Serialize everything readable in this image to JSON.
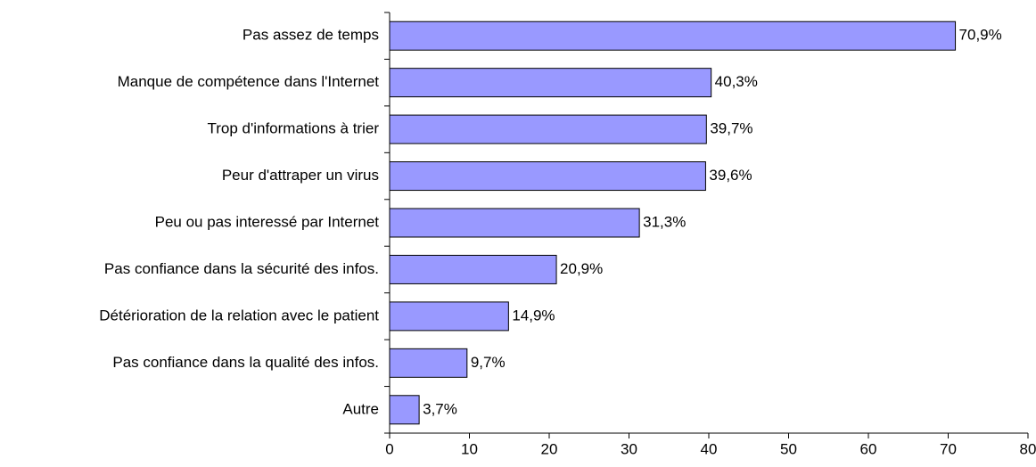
{
  "chart_data": {
    "type": "bar",
    "orientation": "horizontal",
    "categories": [
      "Pas assez de temps",
      "Manque de compétence dans l'Internet",
      "Trop d'informations à trier",
      "Peur d'attraper un virus",
      "Peu ou pas interessé par Internet",
      "Pas confiance dans la sécurité des infos.",
      "Détérioration de la relation avec le patient",
      "Pas confiance dans la qualité des infos.",
      "Autre"
    ],
    "values": [
      70.9,
      40.3,
      39.7,
      39.6,
      31.3,
      20.9,
      14.9,
      9.7,
      3.7
    ],
    "value_labels": [
      "70,9%",
      "40,3%",
      "39,7%",
      "39,6%",
      "31,3%",
      "20,9%",
      "14,9%",
      "9,7%",
      "3,7%"
    ],
    "color": "#9999ff",
    "xlim": [
      0,
      80
    ],
    "xticks": [
      0,
      10,
      20,
      30,
      40,
      50,
      60,
      70,
      80
    ],
    "grid": false
  }
}
